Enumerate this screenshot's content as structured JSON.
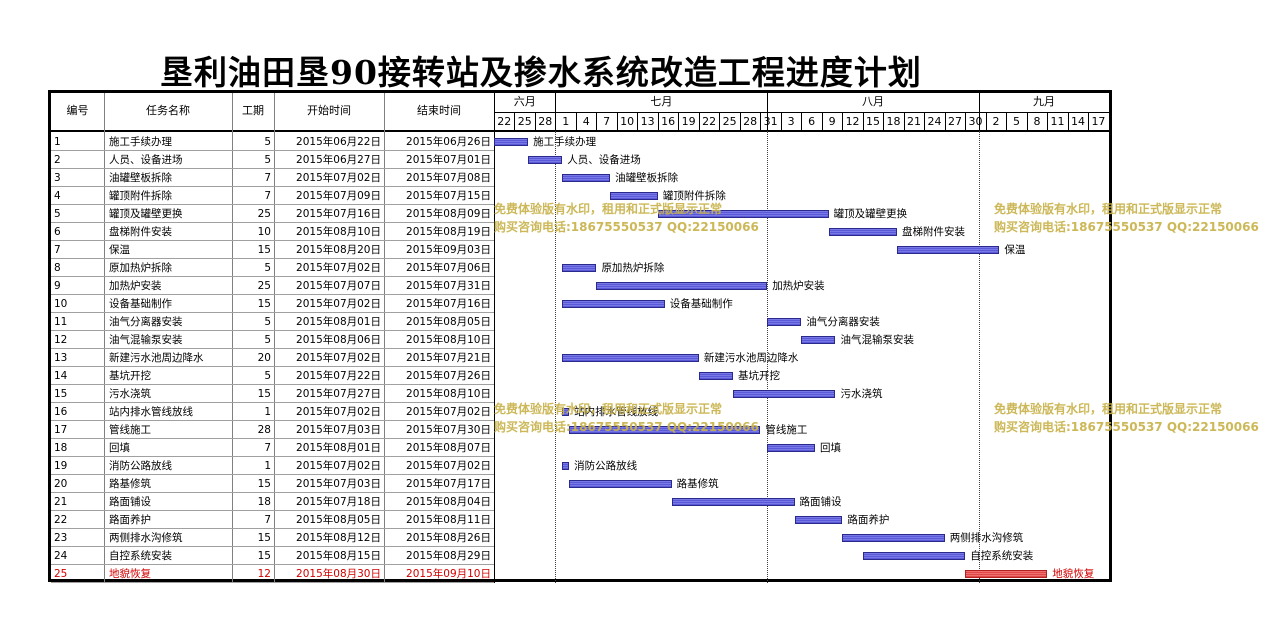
{
  "title": "垦利油田垦90接转站及掺水系统改造工程进度计划",
  "headers": {
    "id": "编号",
    "name": "任务名称",
    "duration": "工期",
    "start": "开始时间",
    "end": "结束时间"
  },
  "months": [
    "六月",
    "七月",
    "八月",
    "九月"
  ],
  "day_ticks": [
    "22",
    "25",
    "28",
    "1",
    "4",
    "7",
    "10",
    "13",
    "16",
    "19",
    "22",
    "25",
    "28",
    "31",
    "3",
    "6",
    "9",
    "12",
    "15",
    "18",
    "21",
    "24",
    "27",
    "30",
    "2",
    "5",
    "8",
    "11",
    "14",
    "17"
  ],
  "watermark": {
    "line1": "免费体验版有水印，租用和正式版显示正常",
    "line2": "购买咨询电话:18675550537 QQ:22150066"
  },
  "colors": {
    "bar": "#6a6ae0",
    "highlight": "#d40000"
  },
  "chart_data": {
    "type": "gantt",
    "title": "垦利油田垦90接转站及掺水系统改造工程进度计划",
    "x_range": [
      "2015-06-22",
      "2015-09-18"
    ],
    "tasks": [
      {
        "id": "1",
        "name": "施工手续办理",
        "duration": "5",
        "start": "2015年06月22日",
        "end": "2015年06月26日",
        "s": "2015-06-22",
        "e": "2015-06-26"
      },
      {
        "id": "2",
        "name": "人员、设备进场",
        "duration": "5",
        "start": "2015年06月27日",
        "end": "2015年07月01日",
        "s": "2015-06-27",
        "e": "2015-07-01"
      },
      {
        "id": "3",
        "name": "油罐壁板拆除",
        "duration": "7",
        "start": "2015年07月02日",
        "end": "2015年07月08日",
        "s": "2015-07-02",
        "e": "2015-07-08"
      },
      {
        "id": "4",
        "name": "罐顶附件拆除",
        "duration": "7",
        "start": "2015年07月09日",
        "end": "2015年07月15日",
        "s": "2015-07-09",
        "e": "2015-07-15"
      },
      {
        "id": "5",
        "name": "罐顶及罐壁更换",
        "duration": "25",
        "start": "2015年07月16日",
        "end": "2015年08月09日",
        "s": "2015-07-16",
        "e": "2015-08-09"
      },
      {
        "id": "6",
        "name": "盘梯附件安装",
        "duration": "10",
        "start": "2015年08月10日",
        "end": "2015年08月19日",
        "s": "2015-08-10",
        "e": "2015-08-19"
      },
      {
        "id": "7",
        "name": "保温",
        "duration": "15",
        "start": "2015年08月20日",
        "end": "2015年09月03日",
        "s": "2015-08-20",
        "e": "2015-09-03"
      },
      {
        "id": "8",
        "name": "原加热炉拆除",
        "duration": "5",
        "start": "2015年07月02日",
        "end": "2015年07月06日",
        "s": "2015-07-02",
        "e": "2015-07-06"
      },
      {
        "id": "9",
        "name": "加热炉安装",
        "duration": "25",
        "start": "2015年07月07日",
        "end": "2015年07月31日",
        "s": "2015-07-07",
        "e": "2015-07-31"
      },
      {
        "id": "10",
        "name": "设备基础制作",
        "duration": "15",
        "start": "2015年07月02日",
        "end": "2015年07月16日",
        "s": "2015-07-02",
        "e": "2015-07-16"
      },
      {
        "id": "11",
        "name": "油气分离器安装",
        "duration": "5",
        "start": "2015年08月01日",
        "end": "2015年08月05日",
        "s": "2015-08-01",
        "e": "2015-08-05"
      },
      {
        "id": "12",
        "name": "油气混输泵安装",
        "duration": "5",
        "start": "2015年08月06日",
        "end": "2015年08月10日",
        "s": "2015-08-06",
        "e": "2015-08-10"
      },
      {
        "id": "13",
        "name": "新建污水池周边降水",
        "duration": "20",
        "start": "2015年07月02日",
        "end": "2015年07月21日",
        "s": "2015-07-02",
        "e": "2015-07-21"
      },
      {
        "id": "14",
        "name": "基坑开挖",
        "duration": "5",
        "start": "2015年07月22日",
        "end": "2015年07月26日",
        "s": "2015-07-22",
        "e": "2015-07-26"
      },
      {
        "id": "15",
        "name": "污水浇筑",
        "duration": "15",
        "start": "2015年07月27日",
        "end": "2015年08月10日",
        "s": "2015-07-27",
        "e": "2015-08-10"
      },
      {
        "id": "16",
        "name": "站内排水管线放线",
        "duration": "1",
        "start": "2015年07月02日",
        "end": "2015年07月02日",
        "s": "2015-07-02",
        "e": "2015-07-02"
      },
      {
        "id": "17",
        "name": "管线施工",
        "duration": "28",
        "start": "2015年07月03日",
        "end": "2015年07月30日",
        "s": "2015-07-03",
        "e": "2015-07-30"
      },
      {
        "id": "18",
        "name": "回填",
        "duration": "7",
        "start": "2015年08月01日",
        "end": "2015年08月07日",
        "s": "2015-08-01",
        "e": "2015-08-07"
      },
      {
        "id": "19",
        "name": "消防公路放线",
        "duration": "1",
        "start": "2015年07月02日",
        "end": "2015年07月02日",
        "s": "2015-07-02",
        "e": "2015-07-02"
      },
      {
        "id": "20",
        "name": "路基修筑",
        "duration": "15",
        "start": "2015年07月03日",
        "end": "2015年07月17日",
        "s": "2015-07-03",
        "e": "2015-07-17"
      },
      {
        "id": "21",
        "name": "路面铺设",
        "duration": "18",
        "start": "2015年07月18日",
        "end": "2015年08月04日",
        "s": "2015-07-18",
        "e": "2015-08-04"
      },
      {
        "id": "22",
        "name": "路面养护",
        "duration": "7",
        "start": "2015年08月05日",
        "end": "2015年08月11日",
        "s": "2015-08-05",
        "e": "2015-08-11"
      },
      {
        "id": "23",
        "name": "两侧排水沟修筑",
        "duration": "15",
        "start": "2015年08月12日",
        "end": "2015年08月26日",
        "s": "2015-08-12",
        "e": "2015-08-26"
      },
      {
        "id": "24",
        "name": "自控系统安装",
        "duration": "15",
        "start": "2015年08月15日",
        "end": "2015年08月29日",
        "s": "2015-08-15",
        "e": "2015-08-29"
      },
      {
        "id": "25",
        "name": "地貌恢复",
        "duration": "12",
        "start": "2015年08月30日",
        "end": "2015年09月10日",
        "s": "2015-08-30",
        "e": "2015-09-10",
        "highlight": true
      }
    ]
  }
}
